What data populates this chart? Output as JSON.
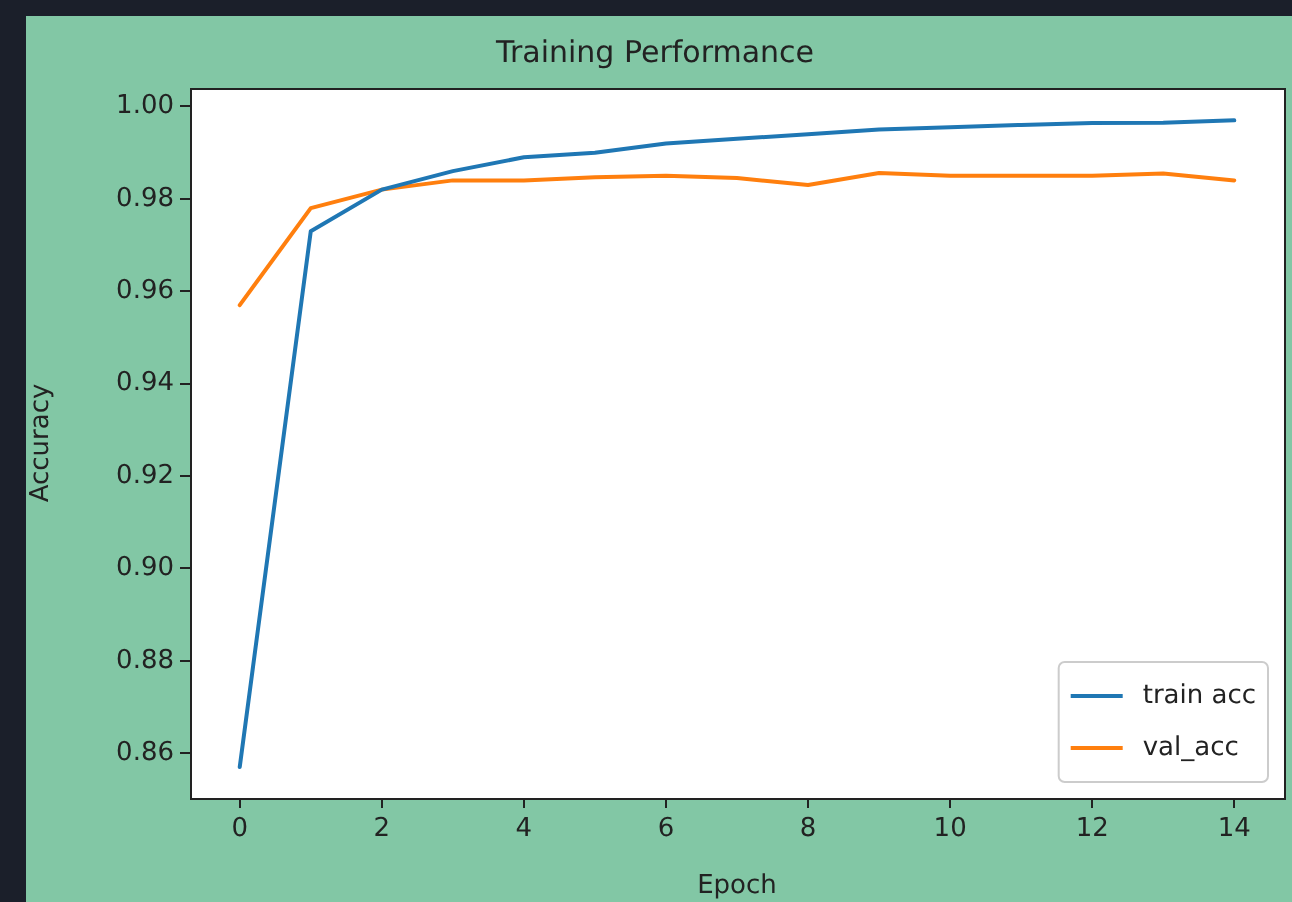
{
  "chart_data": {
    "type": "line",
    "title": "Training Performance",
    "xlabel": "Epoch",
    "ylabel": "Accuracy",
    "x": [
      0,
      1,
      2,
      3,
      4,
      5,
      6,
      7,
      8,
      9,
      10,
      11,
      12,
      13,
      14
    ],
    "series": [
      {
        "name": "train acc",
        "color": "#1f77b4",
        "values": [
          0.857,
          0.973,
          0.982,
          0.986,
          0.989,
          0.99,
          0.992,
          0.993,
          0.994,
          0.995,
          0.9955,
          0.996,
          0.9964,
          0.9965,
          0.997
        ]
      },
      {
        "name": "val_acc",
        "color": "#ff7f0e",
        "values": [
          0.957,
          0.978,
          0.982,
          0.984,
          0.984,
          0.9847,
          0.985,
          0.9845,
          0.983,
          0.9856,
          0.985,
          0.985,
          0.985,
          0.9855,
          0.984
        ]
      }
    ],
    "xlim": [
      -0.7,
      14.7
    ],
    "xticks": [
      0,
      2,
      4,
      6,
      8,
      10,
      12,
      14
    ],
    "ylim": [
      0.8503,
      1.004
    ],
    "yticks": [
      {
        "value": 0.86,
        "label": "0.86"
      },
      {
        "value": 0.88,
        "label": "0.88"
      },
      {
        "value": 0.9,
        "label": "0.90"
      },
      {
        "value": 0.92,
        "label": "0.92"
      },
      {
        "value": 0.94,
        "label": "0.94"
      },
      {
        "value": 0.96,
        "label": "0.96"
      },
      {
        "value": 0.98,
        "label": "0.98"
      },
      {
        "value": 1.0,
        "label": "1.00"
      }
    ],
    "legend": "bottom right",
    "marker": "none",
    "line_style": "solid"
  }
}
